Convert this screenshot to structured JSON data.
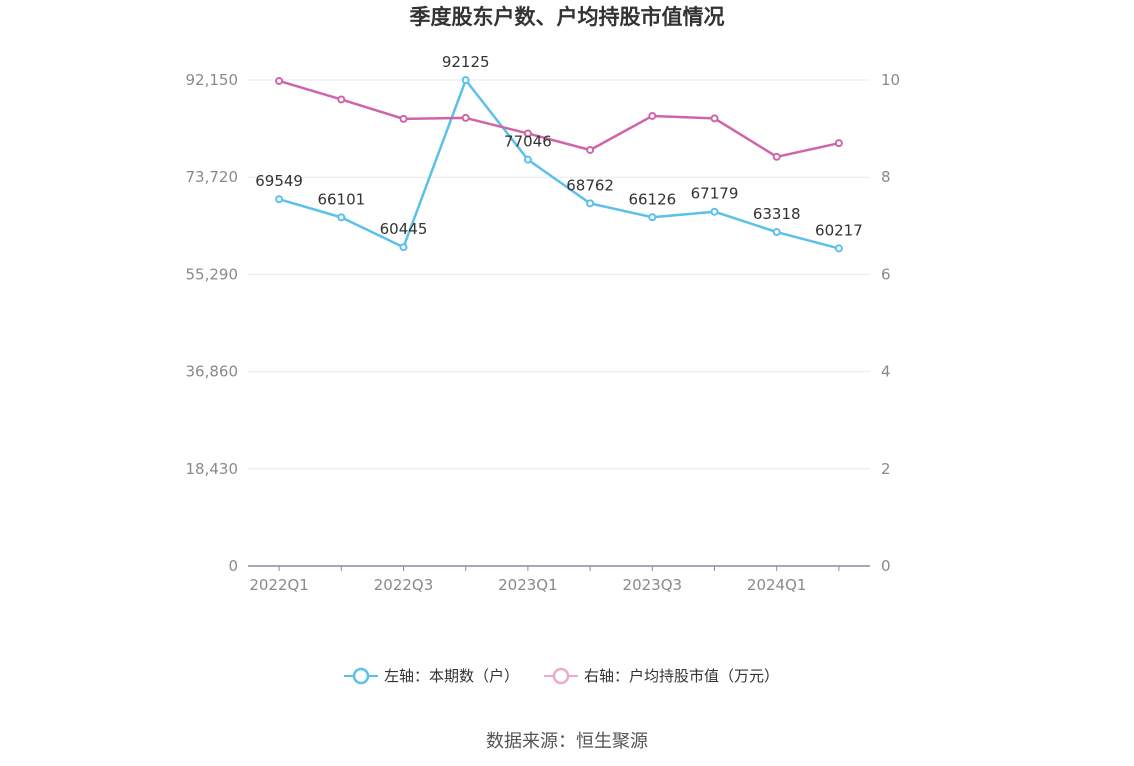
{
  "title": "季度股东户数、户均持股市值情况",
  "source": "数据来源：恒生聚源",
  "colors": {
    "left_series": "#5bc0eb",
    "right_series": "#d064a8",
    "right_legend": "#eeaacc",
    "grid": "#e6e8ef",
    "axis": "#8a8aa8"
  },
  "chart_data": {
    "type": "line",
    "categories": [
      "2022Q1",
      "2022Q2",
      "2022Q3",
      "2022Q4",
      "2023Q1",
      "2023Q2",
      "2023Q3",
      "2023Q4",
      "2024Q1",
      "2024Q2"
    ],
    "x_tick_labels": [
      "2022Q1",
      "",
      "2022Q3",
      "",
      "2023Q1",
      "",
      "2023Q3",
      "",
      "2024Q1",
      ""
    ],
    "left_axis": {
      "ticks": [
        "0",
        "18,430",
        "36,860",
        "55,290",
        "73,720",
        "92,150"
      ],
      "ylim": [
        0,
        92150
      ]
    },
    "right_axis": {
      "ticks": [
        "0",
        "2",
        "4",
        "6",
        "8",
        "10"
      ],
      "ylim": [
        0,
        10
      ]
    },
    "grid": true,
    "legend_position": "bottom",
    "series": [
      {
        "name": "左轴：本期数（户）",
        "axis": "left",
        "values": [
          69549,
          66101,
          60445,
          92125,
          77046,
          68762,
          66126,
          67179,
          63318,
          60217
        ],
        "labels": [
          "69549",
          "66101",
          "60445",
          "92125",
          "77046",
          "68762",
          "66126",
          "67179",
          "63318",
          "60217"
        ]
      },
      {
        "name": "右轴：户均持股市值（万元）",
        "axis": "right",
        "values": [
          9.98,
          9.6,
          9.2,
          9.22,
          8.9,
          8.56,
          9.26,
          9.21,
          8.42,
          8.7
        ]
      }
    ]
  }
}
